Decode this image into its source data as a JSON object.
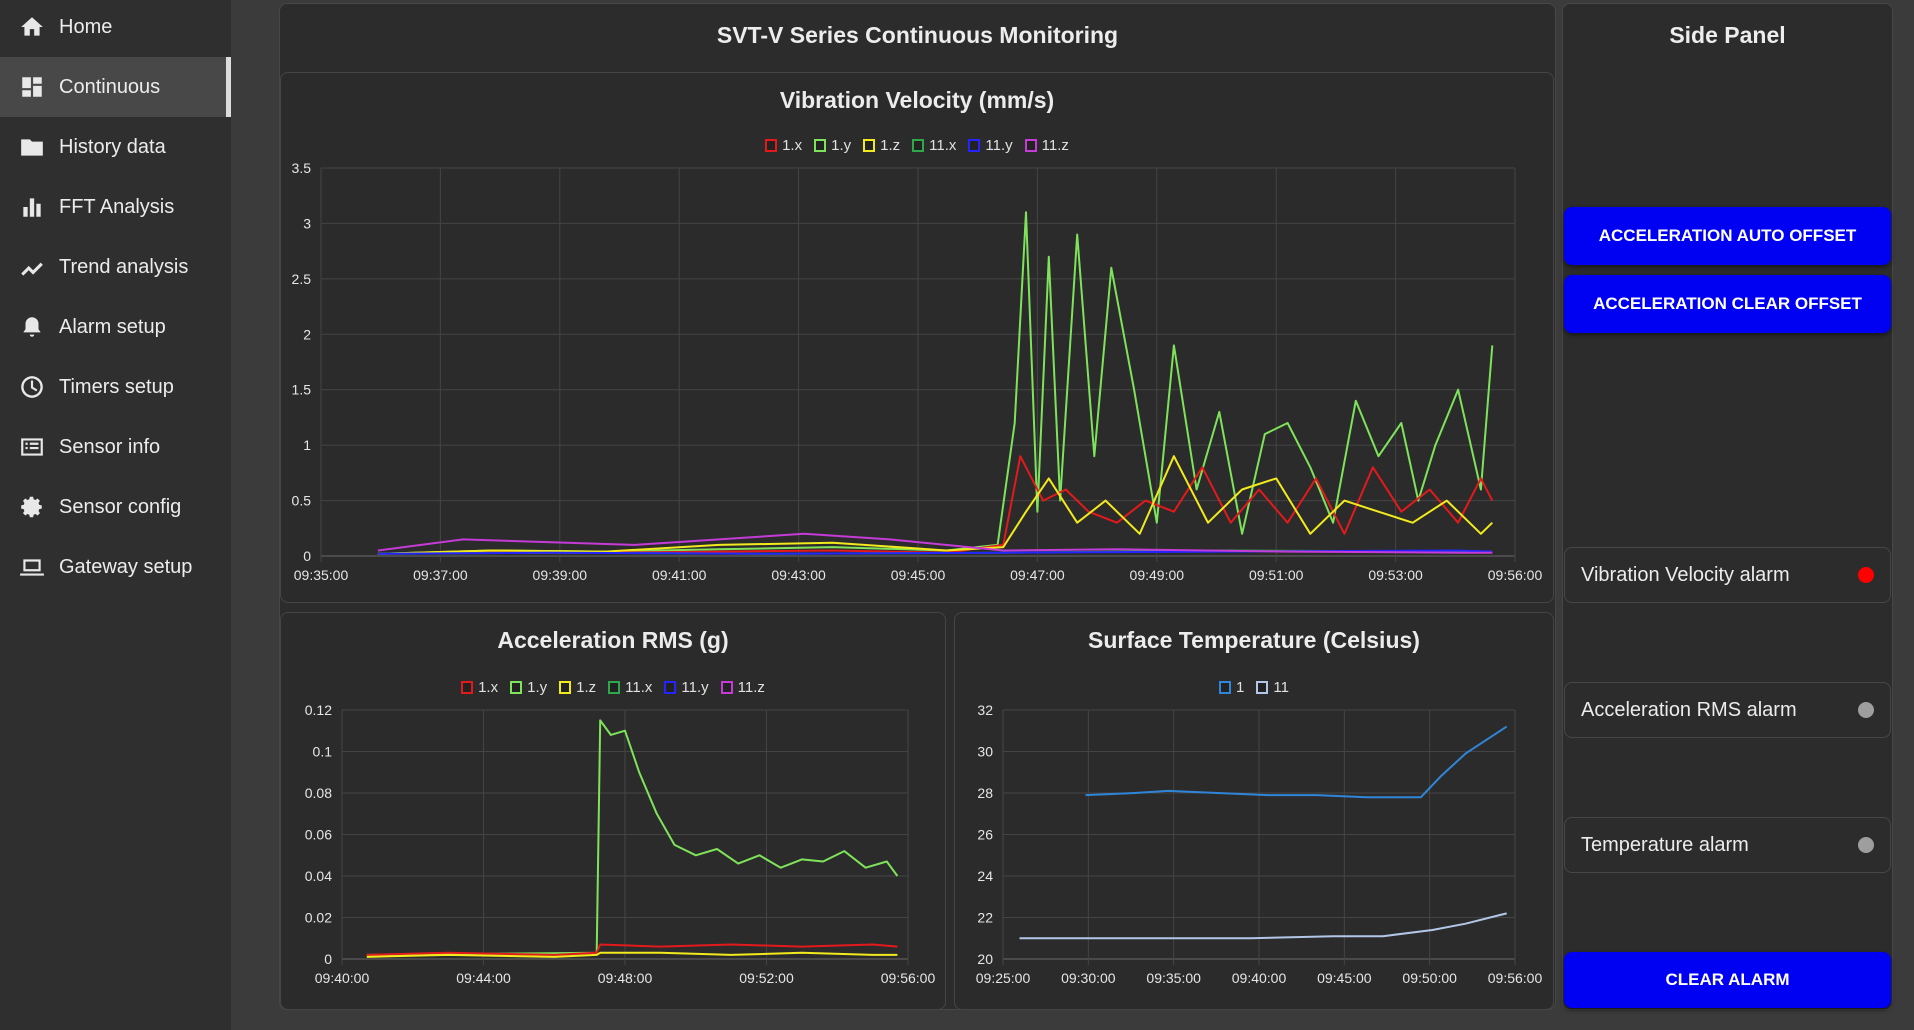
{
  "sidebar": {
    "items": [
      {
        "label": "Home",
        "icon": "home-icon",
        "active": false
      },
      {
        "label": "Continuous",
        "icon": "dashboard-icon",
        "active": true
      },
      {
        "label": "History data",
        "icon": "folder-icon",
        "active": false
      },
      {
        "label": "FFT Analysis",
        "icon": "bar-chart-icon",
        "active": false
      },
      {
        "label": "Trend analysis",
        "icon": "trend-icon",
        "active": false
      },
      {
        "label": "Alarm setup",
        "icon": "alarm-bell-icon",
        "active": false
      },
      {
        "label": "Timers setup",
        "icon": "clock-icon",
        "active": false
      },
      {
        "label": "Sensor info",
        "icon": "info-list-icon",
        "active": false
      },
      {
        "label": "Sensor config",
        "icon": "gear-icon",
        "active": false
      },
      {
        "label": "Gateway setup",
        "icon": "laptop-icon",
        "active": false
      }
    ]
  },
  "main": {
    "title": "SVT-V Series Continuous Monitoring"
  },
  "side_panel": {
    "title": "Side Panel",
    "buttons": {
      "auto_offset": "ACCELERATION AUTO OFFSET",
      "clear_offset": "ACCELERATION CLEAR OFFSET",
      "clear_alarm": "CLEAR ALARM"
    },
    "alarms": [
      {
        "label": "Vibration Velocity alarm",
        "state_color": "#ff0000"
      },
      {
        "label": "Acceleration RMS alarm",
        "state_color": "#9e9e9e"
      },
      {
        "label": "Temperature alarm",
        "state_color": "#9e9e9e"
      }
    ]
  },
  "colors": {
    "1.x": "#e31a1c",
    "1.y": "#7ee35a",
    "1.z": "#f2ea1c",
    "11.x": "#2ea84a",
    "11.y": "#2424ff",
    "11.z": "#c43bd6",
    "temp1": "#2f86d8",
    "temp11": "#b3c6e8"
  },
  "chart_data": [
    {
      "type": "line",
      "title": "Vibration Velocity (mm/s)",
      "x_ticks": [
        "09:35:00",
        "09:37:00",
        "09:39:00",
        "09:41:00",
        "09:43:00",
        "09:45:00",
        "09:47:00",
        "09:49:00",
        "09:51:00",
        "09:53:00",
        "09:56:00"
      ],
      "x_range_minutes": [
        0,
        21
      ],
      "y_ticks": [
        "0",
        "0.5",
        "1",
        "1.5",
        "2",
        "2.5",
        "3",
        "3.5"
      ],
      "ylim": [
        0,
        3.5
      ],
      "legend": [
        "1.x",
        "1.y",
        "1.z",
        "11.x",
        "11.y",
        "11.z"
      ],
      "series": [
        {
          "name": "1.y",
          "x": [
            1,
            3,
            5,
            7,
            9,
            11,
            11.9,
            12.2,
            12.4,
            12.6,
            12.8,
            13,
            13.3,
            13.6,
            13.9,
            14.3,
            14.7,
            15,
            15.4,
            15.8,
            16.2,
            16.6,
            17,
            17.4,
            17.8,
            18.2,
            18.6,
            19,
            19.3,
            19.6,
            20,
            20.4,
            20.6
          ],
          "y": [
            0.02,
            0.05,
            0.04,
            0.06,
            0.08,
            0.05,
            0.1,
            1.2,
            3.1,
            0.4,
            2.7,
            0.5,
            2.9,
            0.9,
            2.6,
            1.5,
            0.3,
            1.9,
            0.6,
            1.3,
            0.2,
            1.1,
            1.2,
            0.8,
            0.3,
            1.4,
            0.9,
            1.2,
            0.5,
            1.0,
            1.5,
            0.6,
            1.9
          ]
        },
        {
          "name": "1.x",
          "x": [
            1,
            3,
            5,
            7,
            9,
            11,
            12,
            12.3,
            12.7,
            13.1,
            13.5,
            14,
            14.5,
            15,
            15.5,
            16,
            16.5,
            17,
            17.5,
            18,
            18.5,
            19,
            19.5,
            20,
            20.4,
            20.6
          ],
          "y": [
            0.02,
            0.03,
            0.03,
            0.04,
            0.05,
            0.03,
            0.1,
            0.9,
            0.5,
            0.6,
            0.4,
            0.3,
            0.5,
            0.4,
            0.8,
            0.3,
            0.6,
            0.3,
            0.7,
            0.2,
            0.8,
            0.4,
            0.6,
            0.3,
            0.7,
            0.5
          ]
        },
        {
          "name": "1.z",
          "x": [
            1,
            3,
            5,
            7,
            9,
            11,
            12,
            12.4,
            12.8,
            13.3,
            13.8,
            14.4,
            15,
            15.6,
            16.2,
            16.8,
            17.4,
            18,
            18.6,
            19.2,
            19.8,
            20.4,
            20.6
          ],
          "y": [
            0.02,
            0.05,
            0.04,
            0.1,
            0.12,
            0.05,
            0.08,
            0.4,
            0.7,
            0.3,
            0.5,
            0.2,
            0.9,
            0.3,
            0.6,
            0.7,
            0.2,
            0.5,
            0.4,
            0.3,
            0.5,
            0.2,
            0.3
          ]
        },
        {
          "name": "11.x",
          "x": [
            1,
            4,
            8,
            12,
            16,
            20,
            20.6
          ],
          "y": [
            0.02,
            0.03,
            0.02,
            0.03,
            0.05,
            0.04,
            0.04
          ]
        },
        {
          "name": "11.y",
          "x": [
            1,
            4,
            8,
            12,
            16,
            20,
            20.6
          ],
          "y": [
            0.02,
            0.03,
            0.02,
            0.03,
            0.04,
            0.05,
            0.04
          ]
        },
        {
          "name": "11.z",
          "x": [
            1,
            2.5,
            5.5,
            8.5,
            10,
            12,
            14,
            17,
            20,
            20.6
          ],
          "y": [
            0.05,
            0.15,
            0.1,
            0.2,
            0.15,
            0.05,
            0.06,
            0.04,
            0.03,
            0.03
          ]
        }
      ]
    },
    {
      "type": "line",
      "title": "Acceleration RMS (g)",
      "x_ticks": [
        "09:40:00",
        "09:44:00",
        "09:48:00",
        "09:52:00",
        "09:56:00"
      ],
      "x_range_minutes": [
        0,
        16
      ],
      "y_ticks": [
        "0",
        "0.02",
        "0.04",
        "0.06",
        "0.08",
        "0.1",
        "0.12"
      ],
      "ylim": [
        0,
        0.12
      ],
      "legend": [
        "1.x",
        "1.y",
        "1.z",
        "11.x",
        "11.y",
        "11.z"
      ],
      "series": [
        {
          "name": "1.y",
          "x": [
            0.7,
            7.2,
            7.3,
            7.6,
            8.0,
            8.4,
            8.9,
            9.4,
            10.0,
            10.6,
            11.2,
            11.8,
            12.4,
            13.0,
            13.6,
            14.2,
            14.8,
            15.4,
            15.7
          ],
          "y": [
            0.002,
            0.003,
            0.115,
            0.108,
            0.11,
            0.09,
            0.07,
            0.055,
            0.05,
            0.053,
            0.046,
            0.05,
            0.044,
            0.048,
            0.047,
            0.052,
            0.044,
            0.047,
            0.04
          ]
        },
        {
          "name": "1.x",
          "x": [
            0.7,
            3,
            6,
            7.2,
            7.3,
            9,
            11,
            13,
            15,
            15.7
          ],
          "y": [
            0.002,
            0.003,
            0.002,
            0.003,
            0.007,
            0.006,
            0.007,
            0.006,
            0.007,
            0.006
          ]
        },
        {
          "name": "1.z",
          "x": [
            0.7,
            3,
            6,
            7.2,
            7.3,
            9,
            11,
            13,
            15,
            15.7
          ],
          "y": [
            0.001,
            0.002,
            0.001,
            0.002,
            0.003,
            0.003,
            0.002,
            0.003,
            0.002,
            0.002
          ]
        }
      ]
    },
    {
      "type": "line",
      "title": "Surface Temperature (Celsius)",
      "x_ticks": [
        "09:25:00",
        "09:30:00",
        "09:35:00",
        "09:40:00",
        "09:45:00",
        "09:50:00",
        "09:56:00"
      ],
      "x_range_minutes": [
        0,
        31
      ],
      "y_ticks": [
        "20",
        "22",
        "24",
        "26",
        "28",
        "30",
        "32"
      ],
      "ylim": [
        20,
        32
      ],
      "legend": [
        "1",
        "11"
      ],
      "series": [
        {
          "name": "1",
          "x": [
            5,
            8,
            10,
            13,
            16,
            19,
            22,
            24,
            25.3,
            26.5,
            28,
            30.5
          ],
          "y": [
            27.9,
            28.0,
            28.1,
            28.0,
            27.9,
            27.9,
            27.8,
            27.8,
            27.8,
            28.8,
            29.9,
            31.2
          ]
        },
        {
          "name": "11",
          "x": [
            1,
            5,
            10,
            15,
            20,
            23,
            26,
            28,
            30,
            30.5
          ],
          "y": [
            21.0,
            21.0,
            21.0,
            21.0,
            21.1,
            21.1,
            21.4,
            21.7,
            22.1,
            22.2
          ]
        }
      ]
    }
  ]
}
